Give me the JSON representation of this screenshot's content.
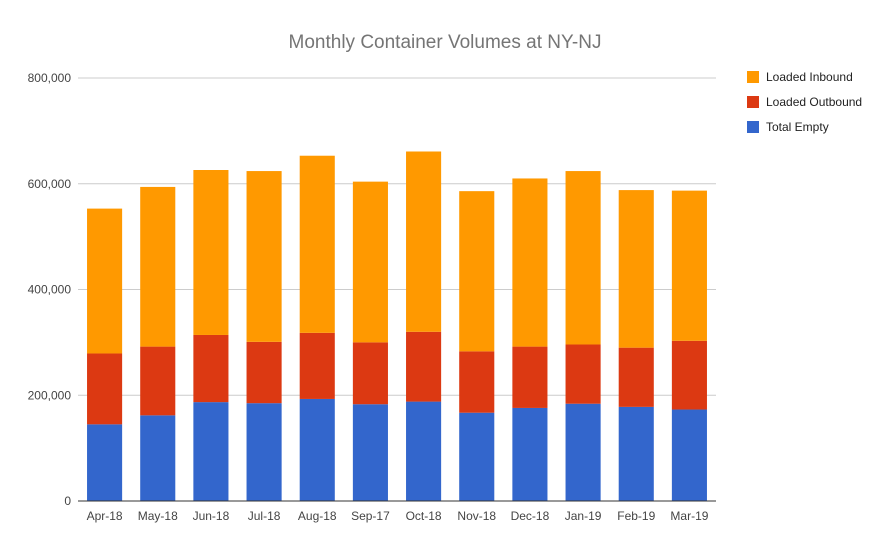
{
  "chart_data": {
    "type": "bar",
    "stacked": true,
    "title": "Monthly Container Volumes at NY-NJ",
    "xlabel": "",
    "ylabel": "",
    "ylim": [
      0,
      800000
    ],
    "yticks": [
      0,
      200000,
      400000,
      600000,
      800000
    ],
    "ytick_labels": [
      "0",
      "200,000",
      "400,000",
      "600,000",
      "800,000"
    ],
    "grid": true,
    "legend_position": "right",
    "categories": [
      "Apr-18",
      "May-18",
      "Jun-18",
      "Jul-18",
      "Aug-18",
      "Sep-17",
      "Oct-18",
      "Nov-18",
      "Dec-18",
      "Jan-19",
      "Feb-19",
      "Mar-19"
    ],
    "series": [
      {
        "name": "Total Empty",
        "color": "#3366cc",
        "values": [
          145000,
          162000,
          187000,
          185000,
          193000,
          183000,
          188000,
          167000,
          176000,
          184000,
          178000,
          173000
        ]
      },
      {
        "name": "Loaded Outbound",
        "color": "#dc3912",
        "values": [
          134000,
          130000,
          127000,
          116000,
          125000,
          117000,
          132000,
          116000,
          116000,
          112000,
          112000,
          130000
        ]
      },
      {
        "name": "Loaded Inbound",
        "color": "#ff9900",
        "values": [
          274000,
          302000,
          312000,
          323000,
          335000,
          304000,
          341000,
          303000,
          318000,
          328000,
          298000,
          284000
        ]
      }
    ],
    "legend_order": [
      "Loaded Inbound",
      "Loaded Outbound",
      "Total Empty"
    ]
  }
}
